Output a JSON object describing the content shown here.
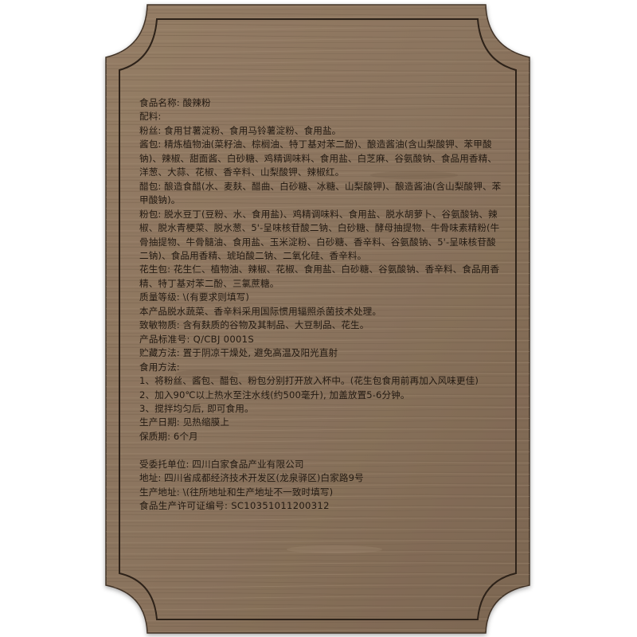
{
  "label": {
    "lines": [
      "食品名称: 酸辣粉",
      "配料:",
      "粉丝: 食用甘薯淀粉、食用马铃薯淀粉、食用盐。",
      "酱包: 精炼植物油(菜籽油、棕榈油、特丁基对苯二酚)、酿造酱油(含山梨酸钾、苯甲酸钠)、辣椒、甜面酱、白砂糖、鸡精调味料、食用盐、白芝麻、谷氨酸钠、食品用香精、洋葱、大蒜、花椒、香辛料、山梨酸钾、辣椒红。",
      "醋包: 酿造食醋(水、麦麸、醋曲、白砂糖、冰糖、山梨酸钾)、酿造酱油(含山梨酸钾、苯甲酸钠)。",
      "粉包: 脱水豆丁(豆粉、水、食用盐)、鸡精调味料、食用盐、脱水胡萝卜、谷氨酸钠、辣椒、脱水青梗菜、脱水葱、5'-呈味核苷酸二钠、白砂糖、酵母抽提物、牛骨味素精粉(牛骨抽提物、牛骨髓油、食用盐、玉米淀粉、白砂糖、香辛料、谷氨酸钠、5'-呈味核苷酸二钠)、食品用香精、琥珀酸二钠、二氧化硅、香辛料。",
      "花生包: 花生仁、植物油、辣椒、花椒、食用盐、白砂糖、谷氨酸钠、香辛料、食品用香精、特丁基对苯二酚、三氯蔗糖。",
      "质量等级: \\(有要求则填写)",
      "本产品脱水蔬菜、香辛料采用国际惯用辐照杀菌技术处理。",
      "致敏物质: 含有麸质的谷物及其制品、大豆制品、花生。",
      "产品标准号: Q/CBJ 0001S",
      "贮藏方法: 置于阴凉干燥处, 避免高温及阳光直射",
      "食用方法:",
      "1、将粉丝、酱包、醋包、粉包分别打开放入杯中。(花生包食用前再加入风味更佳)",
      "2、加入90℃以上热水至注水线(约500毫升), 加盖放置5-6分钟。",
      "3、搅拌均匀后, 即可食用。",
      "生产日期: 见热缩膜上",
      "保质期: 6个月",
      "",
      "受委托单位: 四川白家食品产业有限公司",
      "地址: 四川省成都经济技术开发区(龙泉驿区)白家路9号",
      "生产地址: \\(往所地址和生产地址不一致时填写)",
      "食品生产许可证编号: SC10351011200312"
    ]
  },
  "colors": {
    "wood_base": "#8a735d",
    "wood_dark": "#5e4a38",
    "wood_light": "#a18b73",
    "text": "#231a12"
  }
}
